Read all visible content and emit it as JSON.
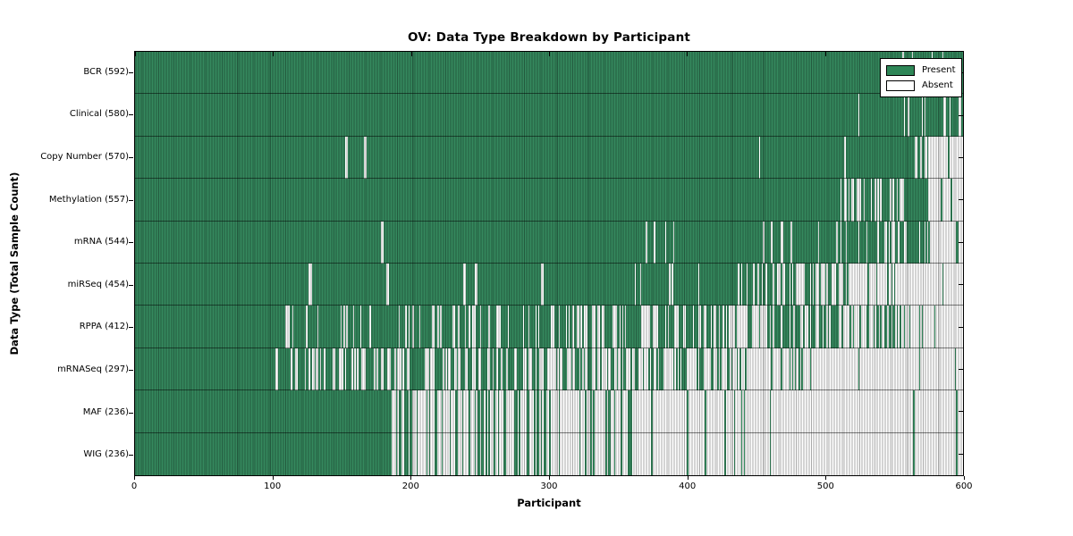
{
  "window": {
    "title": "OV: Data Type Breakdown by Participant"
  },
  "colors": {
    "present": "#35895e",
    "absent": "#ffffff",
    "edge": "#000000",
    "legend_present_swatch": "#2e8657"
  },
  "chart_data": {
    "type": "heatmap",
    "title": "OV: Data Type Breakdown by Participant",
    "xlabel": "Participant",
    "ylabel": "Data Type (Total Sample Count)",
    "x_range": [
      0,
      600
    ],
    "x_ticks": [
      0,
      100,
      200,
      300,
      400,
      500,
      600
    ],
    "grid": false,
    "legend_position": "upper right",
    "legend": {
      "present": "Present",
      "absent": "Absent"
    },
    "rows": [
      {
        "name": "BCR",
        "label": "BCR (592)",
        "total": 592,
        "seed": 11,
        "segments": [
          [
            "P",
            0,
            552
          ],
          [
            "M",
            552,
            578,
            0.73
          ],
          [
            "M",
            578,
            600,
            0.95
          ]
        ]
      },
      {
        "name": "Clinical",
        "label": "Clinical (580)",
        "total": 580,
        "seed": 22,
        "segments": [
          [
            "P",
            0,
            524
          ],
          [
            "A",
            524,
            525
          ],
          [
            "P",
            525,
            552
          ],
          [
            "M",
            552,
            578,
            0.68
          ],
          [
            "P",
            578,
            586
          ],
          [
            "M",
            586,
            600,
            0.3
          ]
        ]
      },
      {
        "name": "CopyNumber",
        "label": "Copy Number (570)",
        "total": 570,
        "seed": 33,
        "segments": [
          [
            "P",
            0,
            152
          ],
          [
            "A",
            152,
            154
          ],
          [
            "P",
            154,
            166
          ],
          [
            "A",
            166,
            168
          ],
          [
            "P",
            168,
            452
          ],
          [
            "A",
            452,
            453
          ],
          [
            "P",
            453,
            514
          ],
          [
            "A",
            514,
            515
          ],
          [
            "P",
            515,
            564
          ],
          [
            "M",
            564,
            576,
            0.6
          ],
          [
            "M",
            576,
            589,
            0.08
          ],
          [
            "P",
            589,
            590
          ],
          [
            "M",
            590,
            600,
            0.05
          ]
        ]
      },
      {
        "name": "Methylation",
        "label": "Methylation (557)",
        "total": 557,
        "seed": 44,
        "segments": [
          [
            "P",
            0,
            511
          ],
          [
            "M",
            511,
            557,
            0.52
          ],
          [
            "P",
            557,
            575
          ],
          [
            "M",
            575,
            600,
            0.08
          ]
        ]
      },
      {
        "name": "mRNA",
        "label": "mRNA (544)",
        "total": 544,
        "seed": 55,
        "segments": [
          [
            "P",
            0,
            178
          ],
          [
            "A",
            178,
            180
          ],
          [
            "P",
            180,
            335
          ],
          [
            "M",
            335,
            520,
            0.93
          ],
          [
            "M",
            520,
            576,
            0.66
          ],
          [
            "M",
            576,
            600,
            0.14
          ]
        ]
      },
      {
        "name": "miRSeq",
        "label": "miRSeq (454)",
        "total": 454,
        "seed": 66,
        "segments": [
          [
            "P",
            0,
            126
          ],
          [
            "A",
            126,
            128
          ],
          [
            "P",
            128,
            182
          ],
          [
            "A",
            182,
            184
          ],
          [
            "P",
            184,
            238
          ],
          [
            "A",
            238,
            240
          ],
          [
            "P",
            240,
            246
          ],
          [
            "A",
            246,
            248
          ],
          [
            "P",
            248,
            294
          ],
          [
            "A",
            294,
            296
          ],
          [
            "P",
            296,
            350
          ],
          [
            "M",
            350,
            435,
            0.93
          ],
          [
            "M",
            435,
            510,
            0.45
          ],
          [
            "M",
            510,
            552,
            0.15
          ],
          [
            "M",
            552,
            600,
            0.04
          ]
        ]
      },
      {
        "name": "RPPA",
        "label": "RPPA (412)",
        "total": 412,
        "seed": 77,
        "segments": [
          [
            "P",
            0,
            104
          ],
          [
            "M",
            104,
            300,
            0.76
          ],
          [
            "M",
            300,
            437,
            0.6
          ],
          [
            "M",
            437,
            520,
            0.52
          ],
          [
            "M",
            520,
            576,
            0.42
          ],
          [
            "M",
            576,
            600,
            0.12
          ]
        ]
      },
      {
        "name": "mRNASeq",
        "label": "mRNASeq (297)",
        "total": 297,
        "seed": 88,
        "segments": [
          [
            "P",
            0,
            102
          ],
          [
            "M",
            102,
            300,
            0.6
          ],
          [
            "M",
            300,
            437,
            0.42
          ],
          [
            "M",
            437,
            520,
            0.12
          ],
          [
            "M",
            520,
            572,
            0.06
          ],
          [
            "A",
            572,
            594
          ],
          [
            "P",
            594,
            595
          ],
          [
            "A",
            595,
            600
          ]
        ]
      },
      {
        "name": "MAF",
        "label": "MAF (236)",
        "total": 236,
        "seed": 99,
        "segments": [
          [
            "P",
            0,
            185
          ],
          [
            "M",
            185,
            300,
            0.38
          ],
          [
            "M",
            300,
            368,
            0.22
          ],
          [
            "M",
            368,
            460,
            0.07
          ],
          [
            "M",
            460,
            600,
            0.015
          ]
        ]
      },
      {
        "name": "WIG",
        "label": "WIG (236)",
        "total": 236,
        "seed": 99,
        "segments": [
          [
            "P",
            0,
            185
          ],
          [
            "M",
            185,
            300,
            0.38
          ],
          [
            "M",
            300,
            368,
            0.22
          ],
          [
            "M",
            368,
            460,
            0.07
          ],
          [
            "M",
            460,
            600,
            0.015
          ]
        ]
      }
    ]
  }
}
